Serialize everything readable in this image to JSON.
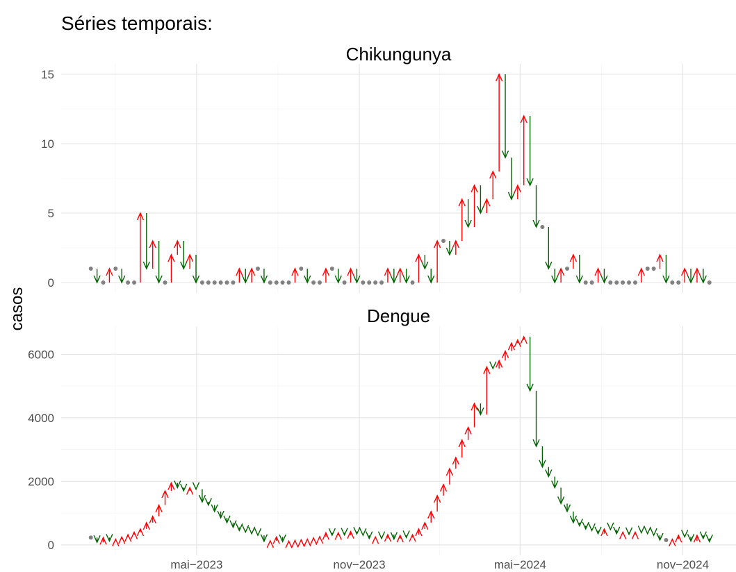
{
  "title": "Séries temporais:",
  "y_label": "casos",
  "xlim": [
    -4.8,
    104.3
  ],
  "xticks": [
    {
      "value": 17.1,
      "label": "mai−2023"
    },
    {
      "value": 43.4,
      "label": "nov−2023"
    },
    {
      "value": 69.4,
      "label": "mai−2024"
    },
    {
      "value": 95.7,
      "label": "nov−2024"
    }
  ],
  "chart_data": [
    {
      "type": "arrow",
      "title": "Chikungunya",
      "up_color": "#ff0000",
      "down_color": "#006400",
      "same_color": "#808080",
      "grid": true,
      "ylim": [
        -0.75,
        15.75
      ],
      "yticks": [
        0,
        5,
        10,
        15
      ],
      "values": [
        1,
        0,
        0,
        1,
        1,
        0,
        0,
        0,
        5,
        1,
        3,
        0,
        0,
        2,
        3,
        1,
        2,
        0,
        0,
        0,
        0,
        0,
        0,
        0,
        1,
        0,
        1,
        1,
        0,
        0,
        0,
        0,
        0,
        1,
        1,
        0,
        0,
        0,
        1,
        1,
        0,
        0,
        1,
        0,
        0,
        0,
        0,
        0,
        1,
        0,
        1,
        0,
        0,
        2,
        1,
        0,
        3,
        3,
        2,
        3,
        6,
        4,
        7,
        5,
        6,
        8,
        15,
        9,
        6,
        7,
        12,
        7,
        4,
        4,
        1,
        0,
        1,
        1,
        2,
        0,
        0,
        0,
        1,
        0,
        0,
        0,
        0,
        0,
        0,
        1,
        1,
        1,
        2,
        0,
        0,
        0,
        1,
        0,
        1,
        0,
        0
      ]
    },
    {
      "type": "arrow",
      "title": "Dengue",
      "up_color": "#ff0000",
      "down_color": "#006400",
      "same_color": "#808080",
      "grid": true,
      "ylim": [
        -330,
        6880
      ],
      "yticks": [
        0,
        2000,
        4000,
        6000
      ],
      "values": [
        230,
        80,
        230,
        120,
        180,
        250,
        320,
        400,
        500,
        700,
        900,
        1250,
        1700,
        1950,
        1800,
        1700,
        1800,
        1750,
        1350,
        1250,
        1050,
        850,
        700,
        550,
        450,
        400,
        350,
        300,
        110,
        130,
        250,
        100,
        120,
        140,
        160,
        180,
        220,
        260,
        380,
        300,
        380,
        310,
        420,
        340,
        300,
        200,
        250,
        200,
        320,
        180,
        300,
        230,
        320,
        500,
        700,
        1050,
        1550,
        1900,
        2400,
        2750,
        3300,
        3700,
        4450,
        4100,
        5600,
        5550,
        5800,
        6100,
        6350,
        6450,
        6550,
        4850,
        3100,
        2450,
        2150,
        1800,
        1300,
        1050,
        700,
        600,
        500,
        450,
        350,
        500,
        480,
        350,
        400,
        330,
        400,
        380,
        350,
        300,
        150,
        150,
        180,
        300,
        250,
        120,
        300,
        200,
        100
      ]
    }
  ]
}
